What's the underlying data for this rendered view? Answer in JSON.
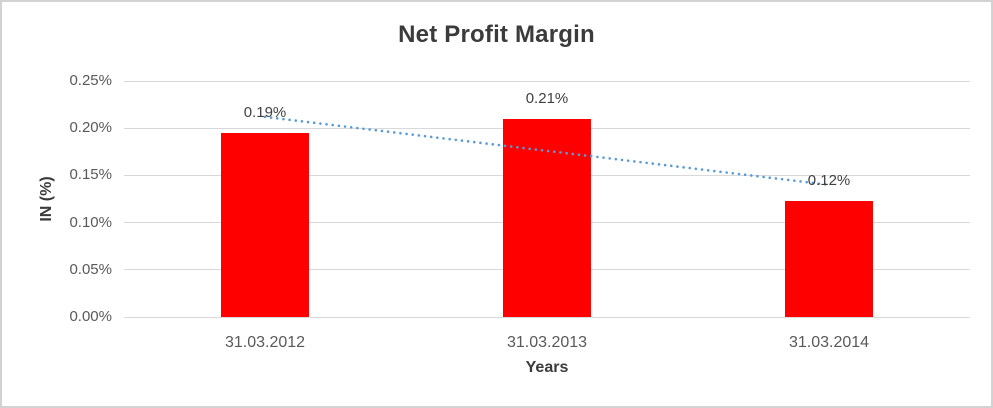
{
  "window": {
    "background_color": "#ffffff",
    "border_color": "#d2d2d2"
  },
  "chart_data": {
    "type": "bar",
    "title": "Net Profit Margin",
    "xlabel": "Years",
    "ylabel": "IN (%)",
    "categories": [
      "31.03.2012",
      "31.03.2013",
      "31.03.2014"
    ],
    "values": [
      0.19,
      0.21,
      0.12
    ],
    "values_precise": [
      0.195,
      0.21,
      0.123
    ],
    "value_labels": [
      "0.19%",
      "0.21%",
      "0.12%"
    ],
    "ylim": [
      0,
      0.25
    ],
    "ytick_step": 0.05,
    "yticks": [
      "0.00%",
      "0.05%",
      "0.10%",
      "0.15%",
      "0.20%",
      "0.25%"
    ],
    "grid": true,
    "legend_position": "none",
    "bar_color": "#ff0000",
    "gridline_color": "#d9d9d9",
    "trendline": {
      "type": "linear",
      "style": "dotted",
      "color": "#5b9bd5"
    },
    "text_colors": {
      "title": "#3b3b3b",
      "axis_titles": "#3b3b3b",
      "tick_labels": "#595959",
      "data_labels": "#404040"
    }
  }
}
